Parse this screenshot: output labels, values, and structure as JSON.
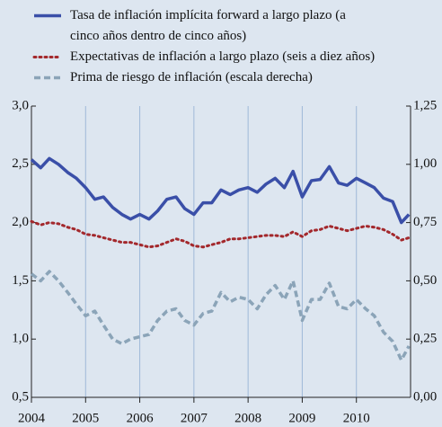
{
  "chart_data": {
    "type": "line",
    "x": [
      2004,
      2004.17,
      2004.33,
      2004.5,
      2004.67,
      2004.83,
      2005,
      2005.17,
      2005.33,
      2005.5,
      2005.67,
      2005.83,
      2006,
      2006.17,
      2006.33,
      2006.5,
      2006.67,
      2006.83,
      2007,
      2007.17,
      2007.33,
      2007.5,
      2007.67,
      2007.83,
      2008,
      2008.17,
      2008.33,
      2008.5,
      2008.67,
      2008.83,
      2009,
      2009.17,
      2009.33,
      2009.5,
      2009.67,
      2009.83,
      2010,
      2010.17,
      2010.33,
      2010.5,
      2010.67,
      2010.83,
      2010.97
    ],
    "xlim": [
      2004,
      2011
    ],
    "xticks": [
      2004,
      2005,
      2006,
      2007,
      2008,
      2009,
      2010
    ],
    "ylim": [
      0.5,
      3.0
    ],
    "yticks": [
      {
        "value": 0.5,
        "label": "0,5"
      },
      {
        "value": 1.0,
        "label": "1,0"
      },
      {
        "value": 1.5,
        "label": "1,5"
      },
      {
        "value": 2.0,
        "label": "2,0"
      },
      {
        "value": 2.5,
        "label": "2,5"
      },
      {
        "value": 3.0,
        "label": "3,0"
      }
    ],
    "y2lim": [
      0,
      1.25
    ],
    "y2ticks": [
      {
        "value": 0,
        "label": "0,00"
      },
      {
        "value": 0.25,
        "label": "0,25"
      },
      {
        "value": 0.5,
        "label": "0,50"
      },
      {
        "value": 0.75,
        "label": "0,75"
      },
      {
        "value": 1.0,
        "label": "1,00"
      },
      {
        "value": 1.25,
        "label": "1,25"
      }
    ],
    "grid": true,
    "series": [
      {
        "name": "Tasa de inflación implícita forward a largo plazo (a cinco años dentro de cinco años)",
        "color": "#3a4fa8",
        "dash": "solid",
        "axis": "y",
        "values": [
          2.54,
          2.47,
          2.55,
          2.5,
          2.43,
          2.38,
          2.3,
          2.2,
          2.22,
          2.13,
          2.07,
          2.03,
          2.07,
          2.03,
          2.1,
          2.2,
          2.22,
          2.12,
          2.07,
          2.17,
          2.17,
          2.28,
          2.24,
          2.28,
          2.3,
          2.26,
          2.33,
          2.38,
          2.3,
          2.44,
          2.22,
          2.36,
          2.37,
          2.48,
          2.34,
          2.32,
          2.38,
          2.34,
          2.3,
          2.21,
          2.18,
          2.0,
          2.07
        ]
      },
      {
        "name": "Expectativas de inflación a largo plazo (seis a diez años)",
        "color": "#a3282c",
        "dash": "dotted",
        "axis": "y",
        "values": [
          2.01,
          1.98,
          2.0,
          1.99,
          1.96,
          1.94,
          1.9,
          1.89,
          1.87,
          1.85,
          1.83,
          1.83,
          1.81,
          1.79,
          1.8,
          1.83,
          1.86,
          1.84,
          1.8,
          1.79,
          1.81,
          1.83,
          1.86,
          1.86,
          1.87,
          1.88,
          1.89,
          1.89,
          1.88,
          1.92,
          1.88,
          1.93,
          1.94,
          1.97,
          1.95,
          1.93,
          1.95,
          1.97,
          1.96,
          1.94,
          1.9,
          1.85,
          1.87
        ]
      },
      {
        "name": "Prima de riesgo de inflación (escala derecha)",
        "color": "#8ba4b8",
        "dash": "dashed",
        "axis": "y2",
        "values": [
          0.53,
          0.5,
          0.54,
          0.5,
          0.45,
          0.4,
          0.35,
          0.37,
          0.31,
          0.25,
          0.23,
          0.25,
          0.26,
          0.27,
          0.33,
          0.37,
          0.38,
          0.33,
          0.31,
          0.36,
          0.37,
          0.45,
          0.41,
          0.43,
          0.42,
          0.38,
          0.44,
          0.48,
          0.42,
          0.5,
          0.33,
          0.42,
          0.42,
          0.49,
          0.39,
          0.38,
          0.42,
          0.38,
          0.35,
          0.28,
          0.24,
          0.16,
          0.22
        ]
      }
    ]
  }
}
